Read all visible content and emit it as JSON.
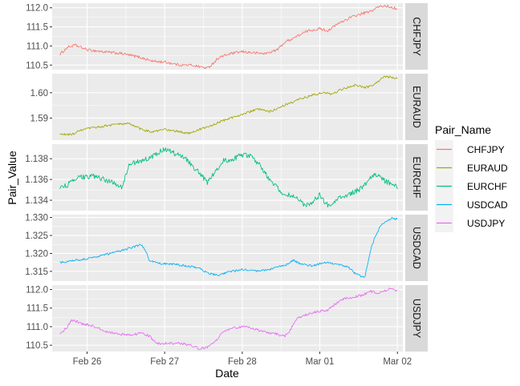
{
  "chart_data": {
    "type": "line",
    "facet_layout": "rows",
    "xlabel": "Date",
    "ylabel": "Pair_Value",
    "x_domain": [
      -0.45,
      4.07
    ],
    "x_ticks": [
      {
        "value": 0,
        "label": "Feb 26"
      },
      {
        "value": 1,
        "label": "Feb 27"
      },
      {
        "value": 2,
        "label": "Feb 28"
      },
      {
        "value": 3,
        "label": "Mar 01"
      },
      {
        "value": 4,
        "label": "Mar 02"
      }
    ],
    "legend": {
      "title": "Pair_Name",
      "position": "right",
      "entries": [
        {
          "name": "CHFJPY",
          "color": "#F8766D"
        },
        {
          "name": "EURAUD",
          "color": "#A3A500"
        },
        {
          "name": "EURCHF",
          "color": "#00BF7D"
        },
        {
          "name": "USDCAD",
          "color": "#00B0F6"
        },
        {
          "name": "USDJPY",
          "color": "#E76BF3"
        }
      ]
    },
    "panels": [
      {
        "name": "CHFJPY",
        "color": "#F8766D",
        "ylim": [
          110.38,
          112.12
        ],
        "y_ticks": [
          {
            "value": 110.5,
            "label": "110.5"
          },
          {
            "value": 111.0,
            "label": "111.0"
          },
          {
            "value": 111.5,
            "label": "111.5"
          },
          {
            "value": 112.0,
            "label": "112.0"
          }
        ],
        "keypoints": [
          [
            -0.35,
            110.78
          ],
          [
            -0.25,
            110.97
          ],
          [
            -0.15,
            111.02
          ],
          [
            0.0,
            110.9
          ],
          [
            0.2,
            110.85
          ],
          [
            0.45,
            110.8
          ],
          [
            0.65,
            110.72
          ],
          [
            0.85,
            110.6
          ],
          [
            1.0,
            110.58
          ],
          [
            1.2,
            110.5
          ],
          [
            1.35,
            110.5
          ],
          [
            1.55,
            110.42
          ],
          [
            1.6,
            110.5
          ],
          [
            1.7,
            110.7
          ],
          [
            1.85,
            110.8
          ],
          [
            2.0,
            110.85
          ],
          [
            2.15,
            110.82
          ],
          [
            2.3,
            110.8
          ],
          [
            2.45,
            110.9
          ],
          [
            2.55,
            111.1
          ],
          [
            2.7,
            111.25
          ],
          [
            2.85,
            111.4
          ],
          [
            3.0,
            111.45
          ],
          [
            3.1,
            111.4
          ],
          [
            3.25,
            111.6
          ],
          [
            3.4,
            111.75
          ],
          [
            3.55,
            111.85
          ],
          [
            3.65,
            111.9
          ],
          [
            3.75,
            112.02
          ],
          [
            3.85,
            112.05
          ],
          [
            3.95,
            112.0
          ],
          [
            4.0,
            111.98
          ]
        ],
        "noise": 0.035
      },
      {
        "name": "EURAUD",
        "color": "#A3A500",
        "ylim": [
          1.5813,
          1.6075
        ],
        "y_ticks": [
          {
            "value": 1.59,
            "label": "1.59"
          },
          {
            "value": 1.6,
            "label": "1.60"
          }
        ],
        "keypoints": [
          [
            -0.35,
            1.5836
          ],
          [
            -0.2,
            1.5835
          ],
          [
            -0.05,
            1.5855
          ],
          [
            0.15,
            1.5865
          ],
          [
            0.35,
            1.5875
          ],
          [
            0.55,
            1.5878
          ],
          [
            0.7,
            1.5855
          ],
          [
            0.85,
            1.5845
          ],
          [
            1.0,
            1.5855
          ],
          [
            1.15,
            1.5848
          ],
          [
            1.3,
            1.584
          ],
          [
            1.45,
            1.5855
          ],
          [
            1.6,
            1.587
          ],
          [
            1.75,
            1.589
          ],
          [
            1.9,
            1.5905
          ],
          [
            2.05,
            1.592
          ],
          [
            2.2,
            1.5935
          ],
          [
            2.35,
            1.5925
          ],
          [
            2.5,
            1.5945
          ],
          [
            2.6,
            1.5958
          ],
          [
            2.75,
            1.5975
          ],
          [
            2.9,
            1.599
          ],
          [
            3.05,
            1.6
          ],
          [
            3.15,
            1.5995
          ],
          [
            3.3,
            1.6015
          ],
          [
            3.45,
            1.603
          ],
          [
            3.6,
            1.602
          ],
          [
            3.72,
            1.6035
          ],
          [
            3.82,
            1.6062
          ],
          [
            3.92,
            1.6062
          ],
          [
            4.0,
            1.6056
          ]
        ],
        "noise": 0.00045
      },
      {
        "name": "EURCHF",
        "color": "#00BF7D",
        "ylim": [
          1.133,
          1.1394
        ],
        "y_ticks": [
          {
            "value": 1.134,
            "label": "1.134"
          },
          {
            "value": 1.136,
            "label": "1.136"
          },
          {
            "value": 1.138,
            "label": "1.138"
          }
        ],
        "keypoints": [
          [
            -0.35,
            1.1352
          ],
          [
            -0.25,
            1.1355
          ],
          [
            -0.1,
            1.1362
          ],
          [
            0.1,
            1.1363
          ],
          [
            0.3,
            1.1358
          ],
          [
            0.45,
            1.1353
          ],
          [
            0.55,
            1.1375
          ],
          [
            0.7,
            1.1378
          ],
          [
            0.85,
            1.1382
          ],
          [
            1.0,
            1.139
          ],
          [
            1.1,
            1.1386
          ],
          [
            1.25,
            1.1382
          ],
          [
            1.4,
            1.137
          ],
          [
            1.55,
            1.1357
          ],
          [
            1.65,
            1.1368
          ],
          [
            1.75,
            1.1378
          ],
          [
            1.85,
            1.1378
          ],
          [
            2.0,
            1.1384
          ],
          [
            2.12,
            1.1382
          ],
          [
            2.25,
            1.1372
          ],
          [
            2.35,
            1.136
          ],
          [
            2.5,
            1.1348
          ],
          [
            2.6,
            1.1345
          ],
          [
            2.7,
            1.1342
          ],
          [
            2.8,
            1.1335
          ],
          [
            2.9,
            1.1338
          ],
          [
            3.0,
            1.1345
          ],
          [
            3.1,
            1.1335
          ],
          [
            3.2,
            1.134
          ],
          [
            3.35,
            1.1345
          ],
          [
            3.45,
            1.1348
          ],
          [
            3.55,
            1.1352
          ],
          [
            3.65,
            1.1362
          ],
          [
            3.75,
            1.1365
          ],
          [
            3.85,
            1.1358
          ],
          [
            3.95,
            1.1355
          ],
          [
            4.0,
            1.1352
          ]
        ],
        "noise": 0.00025
      },
      {
        "name": "USDCAD",
        "color": "#00B0F6",
        "ylim": [
          1.3123,
          1.3308
        ],
        "y_ticks": [
          {
            "value": 1.315,
            "label": "1.315"
          },
          {
            "value": 1.32,
            "label": "1.320"
          },
          {
            "value": 1.325,
            "label": "1.325"
          },
          {
            "value": 1.33,
            "label": "1.330"
          }
        ],
        "keypoints": [
          [
            -0.35,
            1.3175
          ],
          [
            -0.2,
            1.318
          ],
          [
            0.0,
            1.3185
          ],
          [
            0.2,
            1.3195
          ],
          [
            0.4,
            1.3205
          ],
          [
            0.6,
            1.3218
          ],
          [
            0.7,
            1.3225
          ],
          [
            0.75,
            1.321
          ],
          [
            0.8,
            1.318
          ],
          [
            0.95,
            1.3172
          ],
          [
            1.1,
            1.317
          ],
          [
            1.3,
            1.3165
          ],
          [
            1.45,
            1.316
          ],
          [
            1.55,
            1.3145
          ],
          [
            1.7,
            1.314
          ],
          [
            1.85,
            1.315
          ],
          [
            2.0,
            1.3155
          ],
          [
            2.2,
            1.315
          ],
          [
            2.4,
            1.3158
          ],
          [
            2.5,
            1.3165
          ],
          [
            2.6,
            1.317
          ],
          [
            2.65,
            1.3182
          ],
          [
            2.75,
            1.317
          ],
          [
            2.9,
            1.3165
          ],
          [
            3.05,
            1.3175
          ],
          [
            3.2,
            1.317
          ],
          [
            3.35,
            1.3165
          ],
          [
            3.45,
            1.3145
          ],
          [
            3.55,
            1.3135
          ],
          [
            3.58,
            1.3132
          ],
          [
            3.62,
            1.3175
          ],
          [
            3.67,
            1.322
          ],
          [
            3.72,
            1.325
          ],
          [
            3.78,
            1.3275
          ],
          [
            3.85,
            1.329
          ],
          [
            3.92,
            1.3298
          ],
          [
            4.0,
            1.3296
          ]
        ],
        "noise": 0.0003
      },
      {
        "name": "USDJPY",
        "color": "#E76BF3",
        "ylim": [
          110.33,
          112.12
        ],
        "y_ticks": [
          {
            "value": 110.5,
            "label": "110.5"
          },
          {
            "value": 111.0,
            "label": "111.0"
          },
          {
            "value": 111.5,
            "label": "111.5"
          },
          {
            "value": 112.0,
            "label": "112.0"
          }
        ],
        "keypoints": [
          [
            -0.35,
            110.8
          ],
          [
            -0.25,
            111.0
          ],
          [
            -0.2,
            111.2
          ],
          [
            -0.1,
            111.1
          ],
          [
            0.0,
            111.05
          ],
          [
            0.1,
            111.0
          ],
          [
            0.2,
            110.9
          ],
          [
            0.4,
            110.8
          ],
          [
            0.55,
            110.78
          ],
          [
            0.7,
            110.82
          ],
          [
            0.8,
            110.75
          ],
          [
            0.9,
            110.55
          ],
          [
            1.05,
            110.55
          ],
          [
            1.2,
            110.55
          ],
          [
            1.35,
            110.5
          ],
          [
            1.45,
            110.4
          ],
          [
            1.55,
            110.45
          ],
          [
            1.65,
            110.6
          ],
          [
            1.75,
            110.85
          ],
          [
            1.85,
            110.95
          ],
          [
            2.0,
            111.0
          ],
          [
            2.15,
            110.95
          ],
          [
            2.3,
            110.85
          ],
          [
            2.45,
            110.8
          ],
          [
            2.55,
            110.75
          ],
          [
            2.6,
            110.85
          ],
          [
            2.7,
            111.2
          ],
          [
            2.8,
            111.3
          ],
          [
            2.95,
            111.4
          ],
          [
            3.1,
            111.45
          ],
          [
            3.2,
            111.6
          ],
          [
            3.3,
            111.75
          ],
          [
            3.45,
            111.8
          ],
          [
            3.55,
            111.85
          ],
          [
            3.65,
            111.95
          ],
          [
            3.75,
            111.9
          ],
          [
            3.82,
            111.95
          ],
          [
            3.9,
            112.02
          ],
          [
            4.0,
            111.95
          ]
        ],
        "noise": 0.035
      }
    ]
  }
}
